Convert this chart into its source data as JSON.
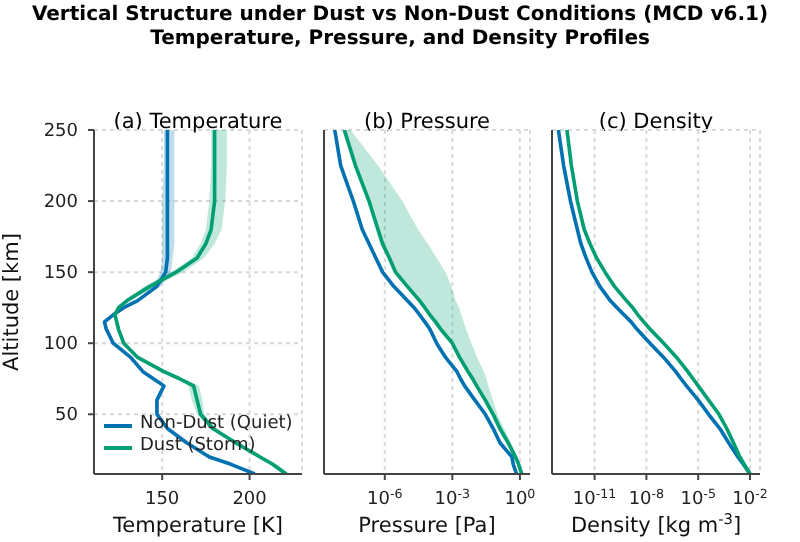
{
  "chart_data": [
    {
      "type": "line",
      "title": "(a) Temperature",
      "annotations": [
        "Vertical Structure under Dust vs Non-Dust Conditions (MCD v6.1)",
        "Temperature, Pressure, and Density Profiles"
      ],
      "orientation": "horizontal",
      "xlabel": "Temperature [K]",
      "ylabel": "Altitude [km]",
      "x": [
        8,
        15,
        20,
        30,
        40,
        50,
        60,
        70,
        75,
        80,
        90,
        100,
        110,
        115,
        120,
        125,
        130,
        140,
        150,
        160,
        170,
        180,
        200,
        225,
        250
      ],
      "xlim": [
        111,
        230
      ],
      "xticks": [
        150,
        200
      ],
      "ylim": [
        8,
        250
      ],
      "yticks": [
        50,
        100,
        150,
        200,
        250
      ],
      "grid": true,
      "legend": "bottom left",
      "series": [
        {
          "name": "Non-Dust (Quiet)",
          "color": "#0072b2",
          "values": [
            203,
            189,
            177,
            164,
            153,
            147,
            147,
            151,
            145,
            139,
            132,
            122,
            118,
            117,
            122,
            128,
            136,
            147,
            152,
            153,
            153,
            153,
            153,
            153,
            153
          ],
          "lower": [
            202,
            188,
            176,
            163,
            152,
            146,
            146,
            150,
            144,
            138,
            131,
            121,
            117,
            116,
            121,
            127,
            135,
            145,
            149,
            150,
            150,
            150,
            150,
            151,
            151
          ],
          "upper": [
            204,
            190,
            178,
            165,
            154,
            148,
            148,
            152,
            146,
            140,
            133,
            123,
            119,
            118,
            123,
            129,
            137,
            149,
            155,
            156,
            157,
            157,
            157,
            157,
            157
          ]
        },
        {
          "name": "Dust (Storm)",
          "color": "#009e73",
          "values": [
            221,
            213,
            206,
            192,
            179,
            172,
            170,
            168,
            160,
            151,
            136,
            128,
            125,
            124,
            123,
            125,
            130,
            143,
            158,
            170,
            175,
            178,
            180,
            180,
            180
          ],
          "lower": [
            219,
            211,
            204,
            190,
            177,
            170,
            167,
            165,
            158,
            149,
            135,
            127,
            124,
            123,
            122,
            124,
            128,
            140,
            155,
            167,
            172,
            175,
            177,
            178,
            178
          ],
          "upper": [
            223,
            215,
            208,
            194,
            181,
            174,
            173,
            171,
            162,
            153,
            137,
            129,
            126,
            125,
            124,
            126,
            132,
            146,
            162,
            174,
            180,
            184,
            186,
            187,
            187
          ]
        }
      ]
    },
    {
      "type": "line",
      "title": "(b) Pressure",
      "orientation": "horizontal",
      "xlabel": "Pressure [Pa]",
      "log": "x",
      "x": [
        8,
        15,
        20,
        30,
        40,
        50,
        60,
        70,
        75,
        80,
        90,
        100,
        110,
        115,
        120,
        125,
        130,
        140,
        150,
        160,
        170,
        180,
        200,
        225,
        250
      ],
      "xlim": [
        2e-09,
        2.8
      ],
      "xticks": [
        {
          "value": 1e-06,
          "label": "10$^{-6}$"
        },
        {
          "value": 0.001,
          "label": "10$^{-3}$"
        },
        {
          "value": 1,
          "label": "10$^{0}$"
        }
      ],
      "ylim": [
        8,
        250
      ],
      "yticks": [
        50,
        100,
        150,
        200,
        250
      ],
      "tick_labels": "x",
      "grid": true,
      "series": [
        {
          "color": "#0072b2",
          "values": [
            0.71,
            0.5,
            0.44,
            0.13,
            0.065,
            0.029,
            0.01,
            0.0035,
            0.0023,
            0.0016,
            0.0005,
            0.0002,
            0.0001,
            6e-05,
            3.5e-05,
            2e-05,
            1e-05,
            2.5e-06,
            8e-07,
            4e-07,
            2e-07,
            1e-07,
            4e-08,
            1.1e-08,
            6e-09
          ]
        },
        {
          "color": "#009e73",
          "values": [
            1.2,
            0.87,
            0.63,
            0.3,
            0.13,
            0.065,
            0.029,
            0.012,
            0.008,
            0.005,
            0.0021,
            0.001,
            0.0003,
            0.00018,
            0.0001,
            6e-05,
            3.5e-05,
            1e-05,
            3e-06,
            1.6e-06,
            8e-07,
            5e-07,
            2e-07,
            5e-08,
            1.6e-08
          ],
          "lower": [
            1.0,
            0.7,
            0.5,
            0.24,
            0.1,
            0.05,
            0.023,
            0.01,
            0.0065,
            0.004,
            0.0017,
            0.0008,
            0.00024,
            0.00014,
            8e-05,
            5e-05,
            2.8e-05,
            8e-06,
            2.4e-06,
            1.3e-06,
            6e-07,
            4e-07,
            1.6e-07,
            4e-08,
            1.3e-08
          ],
          "upper": [
            1.4,
            1.0,
            0.8,
            0.4,
            0.2,
            0.1,
            0.063,
            0.04,
            0.032,
            0.025,
            0.0126,
            0.007,
            0.004,
            0.0032,
            0.0025,
            0.002,
            0.0014,
            0.0009,
            0.0005,
            0.0002,
            8e-05,
            3e-05,
            6e-06,
            5e-07,
            3e-08
          ]
        }
      ]
    },
    {
      "type": "line",
      "title": "(c) Density",
      "orientation": "horizontal",
      "xlabel": "Density [kg m$^{-3}$]",
      "log": "x",
      "x": [
        8,
        15,
        20,
        30,
        40,
        50,
        60,
        70,
        75,
        80,
        90,
        100,
        110,
        115,
        120,
        125,
        130,
        140,
        150,
        160,
        170,
        180,
        200,
        225,
        250
      ],
      "xlim": [
        3.4e-14,
        0.038
      ],
      "xticks": [
        {
          "value": 1e-11,
          "label": "10$^{-11}$"
        },
        {
          "value": 1e-08,
          "label": "10$^{-8}$"
        },
        {
          "value": 1e-05,
          "label": "10$^{-5}$"
        },
        {
          "value": 0.01,
          "label": "10$^{-2}$"
        }
      ],
      "ylim": [
        8,
        250
      ],
      "yticks": [
        50,
        100,
        150,
        200,
        250
      ],
      "tick_labels": "x",
      "grid": true,
      "series": [
        {
          "color": "#0072b2",
          "values": [
            0.01,
            0.004,
            0.002,
            0.00058,
            0.00018,
            4e-05,
            1e-05,
            2.1e-06,
            1e-06,
            5e-07,
            1e-07,
            1.6e-08,
            2.8e-09,
            1.3e-09,
            5e-10,
            2e-10,
            8e-11,
            2e-11,
            7e-12,
            3.2e-12,
            1.6e-12,
            1e-12,
            4e-13,
            1.6e-13,
            8e-14
          ]
        },
        {
          "color": "#009e73",
          "values": [
            0.01,
            0.0045,
            0.0026,
            0.0011,
            0.00045,
            0.00016,
            4e-05,
            1e-05,
            5e-06,
            2.5e-06,
            5.6e-07,
            1e-07,
            1.6e-08,
            7e-09,
            3.2e-09,
            1.6e-09,
            7e-10,
            1.4e-10,
            4e-11,
            1.3e-11,
            5.4e-12,
            2.5e-12,
            1e-12,
            4.5e-13,
            2.5e-13
          ]
        }
      ]
    }
  ]
}
